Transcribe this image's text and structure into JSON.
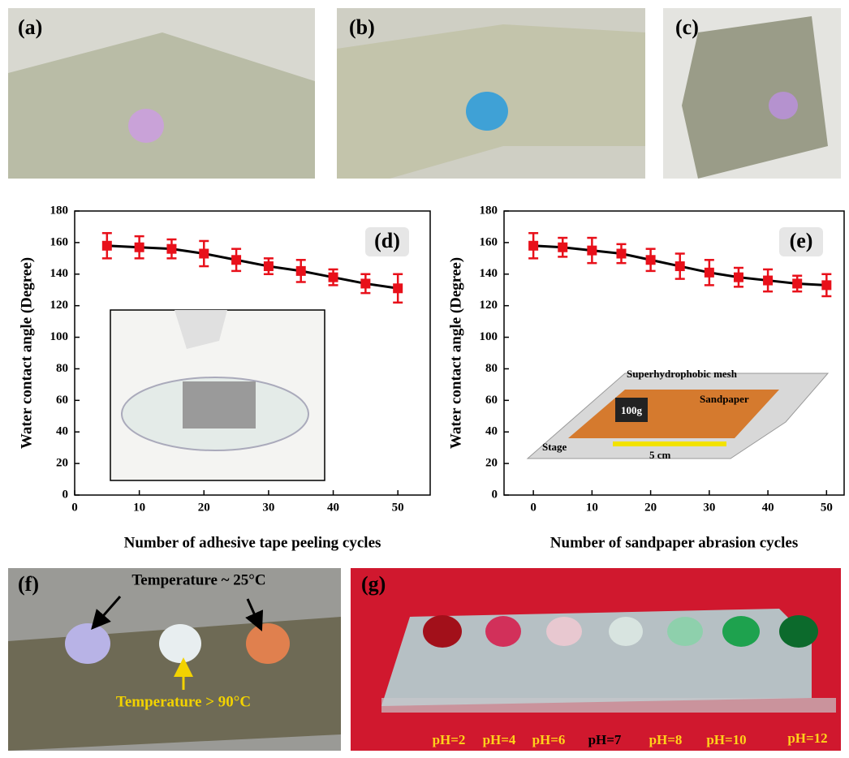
{
  "photos": [
    {
      "label": "(a)"
    },
    {
      "label": "(b)"
    },
    {
      "label": "(c)"
    },
    {
      "label": "(f)",
      "annotations": [
        "Temperature ~ 25°C",
        "Temperature > 90°C"
      ]
    },
    {
      "label": "(g)",
      "annotations": [
        "pH=2",
        "pH=4",
        "pH=6",
        "pH=7",
        "pH=8",
        "pH=10",
        "pH=12"
      ]
    }
  ],
  "chart_data": [
    {
      "type": "line",
      "panel_label": "(d)",
      "x": [
        5,
        10,
        15,
        20,
        25,
        30,
        35,
        40,
        45,
        50
      ],
      "values": [
        158,
        157,
        156,
        153,
        149,
        145,
        142,
        138,
        134,
        131
      ],
      "errors": [
        8,
        7,
        6,
        8,
        7,
        5,
        7,
        5,
        6,
        9
      ],
      "color": "#e8101a",
      "line_color": "#000000",
      "xlim": [
        0,
        55
      ],
      "xticks": [
        0,
        10,
        20,
        30,
        40,
        50
      ],
      "ylim": [
        0,
        180
      ],
      "yticks": [
        0,
        20,
        40,
        60,
        80,
        100,
        120,
        140,
        160,
        180
      ],
      "x_label": "Number of adhesive tape peeling cycles",
      "y_label": "Water contact angle (Degree)"
    },
    {
      "type": "line",
      "panel_label": "(e)",
      "x": [
        0,
        5,
        10,
        15,
        20,
        25,
        30,
        35,
        40,
        45,
        50
      ],
      "values": [
        158,
        157,
        155,
        153,
        149,
        145,
        141,
        138,
        136,
        134,
        133
      ],
      "errors": [
        8,
        6,
        8,
        6,
        7,
        8,
        8,
        6,
        7,
        5,
        7
      ],
      "color": "#e8101a",
      "line_color": "#000000",
      "xlim": [
        -5,
        53
      ],
      "xticks": [
        0,
        10,
        20,
        30,
        40,
        50
      ],
      "ylim": [
        0,
        180
      ],
      "yticks": [
        0,
        20,
        40,
        60,
        80,
        100,
        120,
        140,
        160,
        180
      ],
      "x_label": "Number of sandpaper abrasion cycles",
      "y_label": "Water contact angle (Degree)",
      "inset_labels": [
        "Superhydrophobic mesh",
        "Sandpaper",
        "100g",
        "Stage",
        "5 cm"
      ]
    }
  ]
}
